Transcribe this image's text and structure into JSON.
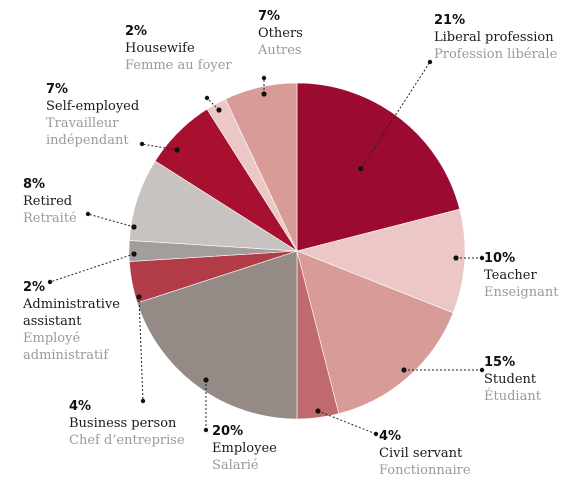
{
  "chart_data": {
    "type": "pie",
    "start": "12 o'clock",
    "direction": "clockwise",
    "slices": [
      {
        "pct": "21%",
        "value": 21,
        "label": "Liberal profession",
        "label_fr": "Profession libérale",
        "color": "#9b0a30"
      },
      {
        "pct": "10%",
        "value": 10,
        "label": "Teacher",
        "label_fr": "Enseignant",
        "color": "#ebc7c5"
      },
      {
        "pct": "15%",
        "value": 15,
        "label": "Student",
        "label_fr": "Étudiant",
        "color": "#d89c98"
      },
      {
        "pct": "4%",
        "value": 4,
        "label": "Civil servant",
        "label_fr": "Fonctionnaire",
        "color": "#c0696e"
      },
      {
        "pct": "20%",
        "value": 20,
        "label": "Employee",
        "label_fr": "Salarié",
        "color": "#948b87"
      },
      {
        "pct": "4%",
        "value": 4,
        "label": "Business person",
        "label_fr": "Chef d’entreprise",
        "color": "#b23b48"
      },
      {
        "pct": "2%",
        "value": 2,
        "label": "Administrative assistant",
        "label_fr": "Employé administratif",
        "color": "#a39d9b"
      },
      {
        "pct": "8%",
        "value": 8,
        "label": "Retired",
        "label_fr": "Retraité",
        "color": "#c8c3c1"
      },
      {
        "pct": "7%",
        "value": 7,
        "label": "Self-employed",
        "label_fr": "Travailleur indépendant",
        "color": "#a8102f"
      },
      {
        "pct": "2%",
        "value": 2,
        "label": "Housewife",
        "label_fr": "Femme au foyer",
        "color": "#ebc7c5"
      },
      {
        "pct": "7%",
        "value": 7,
        "label": "Others",
        "label_fr": "Autres",
        "color": "#d89c98"
      }
    ]
  }
}
